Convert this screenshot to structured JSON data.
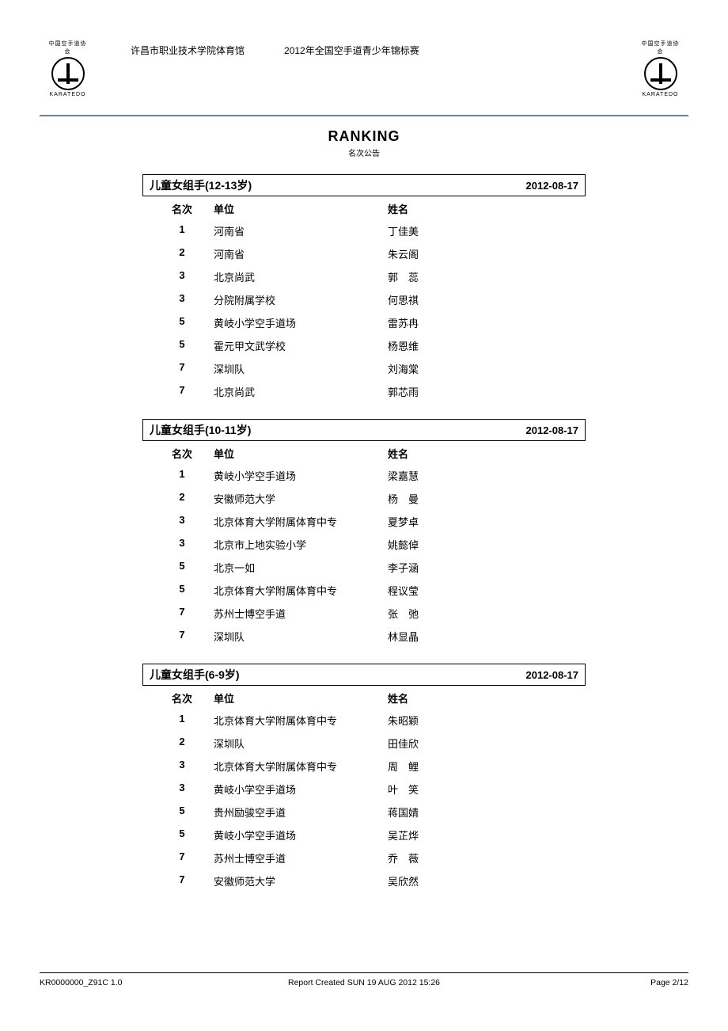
{
  "header": {
    "venue": "许昌市职业技术学院体育馆",
    "event": "2012年全国空手道青少年锦标赛",
    "logo_text_top": "中国空手道协会",
    "logo_text_bottom": "KARATEDO"
  },
  "title": {
    "main": "RANKING",
    "sub": "名次公告"
  },
  "columns": {
    "rank": "名次",
    "unit": "单位",
    "name": "姓名"
  },
  "sections": [
    {
      "title": "儿童女组手(12-13岁)",
      "date": "2012-08-17",
      "rows": [
        {
          "rank": "1",
          "unit": "河南省",
          "name": "丁佳美"
        },
        {
          "rank": "2",
          "unit": "河南省",
          "name": "朱云阁"
        },
        {
          "rank": "3",
          "unit": "北京尚武",
          "name": "郭　蕊"
        },
        {
          "rank": "3",
          "unit": "分院附属学校",
          "name": "何思祺"
        },
        {
          "rank": "5",
          "unit": "黄岐小学空手道场",
          "name": "雷苏冉"
        },
        {
          "rank": "5",
          "unit": "霍元甲文武学校",
          "name": "杨恩维"
        },
        {
          "rank": "7",
          "unit": "深圳队",
          "name": "刘海棠"
        },
        {
          "rank": "7",
          "unit": "北京尚武",
          "name": "郭芯雨"
        }
      ]
    },
    {
      "title": "儿童女组手(10-11岁)",
      "date": "2012-08-17",
      "rows": [
        {
          "rank": "1",
          "unit": "黄岐小学空手道场",
          "name": "梁嘉慧"
        },
        {
          "rank": "2",
          "unit": "安徽师范大学",
          "name": "杨　曼"
        },
        {
          "rank": "3",
          "unit": "北京体育大学附属体育中专",
          "name": "夏梦卓"
        },
        {
          "rank": "3",
          "unit": "北京市上地实验小学",
          "name": "姚懿倬"
        },
        {
          "rank": "5",
          "unit": "北京一如",
          "name": "李子涵"
        },
        {
          "rank": "5",
          "unit": "北京体育大学附属体育中专",
          "name": "程议莹"
        },
        {
          "rank": "7",
          "unit": "苏州士博空手道",
          "name": "张　弛"
        },
        {
          "rank": "7",
          "unit": "深圳队",
          "name": "林显晶"
        }
      ]
    },
    {
      "title": "儿童女组手(6-9岁)",
      "date": "2012-08-17",
      "rows": [
        {
          "rank": "1",
          "unit": "北京体育大学附属体育中专",
          "name": "朱昭颖"
        },
        {
          "rank": "2",
          "unit": "深圳队",
          "name": "田佳欣"
        },
        {
          "rank": "3",
          "unit": "北京体育大学附属体育中专",
          "name": "周　鲤"
        },
        {
          "rank": "3",
          "unit": "黄岐小学空手道场",
          "name": "叶　笑"
        },
        {
          "rank": "5",
          "unit": "贵州励骏空手道",
          "name": "蒋国婧"
        },
        {
          "rank": "5",
          "unit": "黄岐小学空手道场",
          "name": "吴芷烨"
        },
        {
          "rank": "7",
          "unit": "苏州士博空手道",
          "name": "乔　薇"
        },
        {
          "rank": "7",
          "unit": "安徽师范大学",
          "name": "吴欣然"
        }
      ]
    }
  ],
  "footer": {
    "left": "KR0000000_Z91C 1.0",
    "center": "Report Created SUN 19 AUG 2012 15:26",
    "right": "Page 2/12"
  }
}
